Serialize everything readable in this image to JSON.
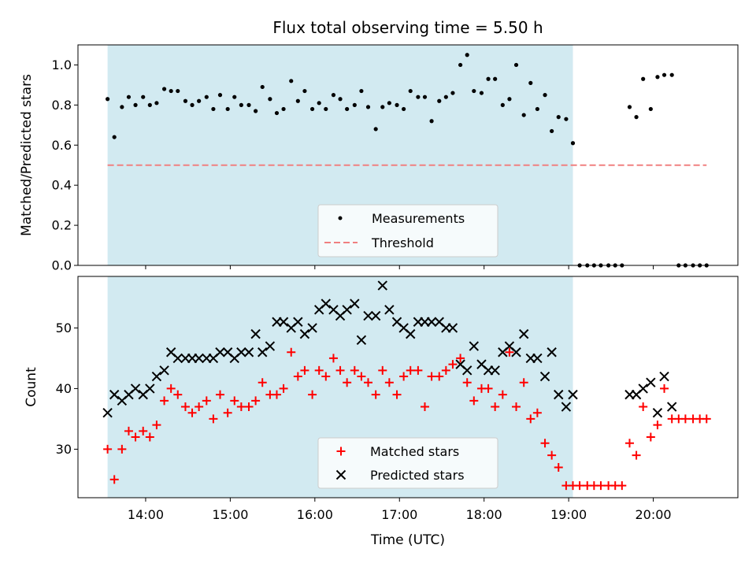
{
  "chart_data": [
    {
      "type": "scatter",
      "title": "Flux total observing time = 5.50 h",
      "xlabel": "",
      "ylabel": "Matched/Predicted stars",
      "xlim": [
        13.2,
        21.0
      ],
      "ylim": [
        0.0,
        1.1
      ],
      "yticks": [
        0.0,
        0.2,
        0.4,
        0.6,
        0.8,
        1.0
      ],
      "ytick_labels": [
        "0.0",
        "0.2",
        "0.4",
        "0.6",
        "0.8",
        "1.0"
      ],
      "xticks": [
        14,
        15,
        16,
        17,
        18,
        19,
        20
      ],
      "shaded_span": [
        13.55,
        19.05
      ],
      "shade_color": "#add8e6",
      "legend": {
        "placement": "lower center",
        "entries": [
          "Measurements",
          "Threshold"
        ]
      },
      "series": [
        {
          "name": "Measurements",
          "marker": "dot",
          "color": "#000000",
          "x": [
            13.55,
            13.63,
            13.72,
            13.8,
            13.88,
            13.97,
            14.05,
            14.13,
            14.22,
            14.3,
            14.38,
            14.47,
            14.55,
            14.63,
            14.72,
            14.8,
            14.88,
            14.97,
            15.05,
            15.13,
            15.22,
            15.3,
            15.38,
            15.47,
            15.55,
            15.63,
            15.72,
            15.8,
            15.88,
            15.97,
            16.05,
            16.13,
            16.22,
            16.3,
            16.38,
            16.47,
            16.55,
            16.63,
            16.72,
            16.8,
            16.88,
            16.97,
            17.05,
            17.13,
            17.22,
            17.3,
            17.38,
            17.47,
            17.55,
            17.63,
            17.72,
            17.8,
            17.88,
            17.97,
            18.05,
            18.13,
            18.22,
            18.3,
            18.38,
            18.47,
            18.55,
            18.63,
            18.72,
            18.8,
            18.88,
            18.97,
            19.05,
            19.13,
            19.22,
            19.3,
            19.38,
            19.47,
            19.55,
            19.63,
            19.72,
            19.8,
            19.88,
            19.97,
            20.05,
            20.13,
            20.22,
            20.3,
            20.38,
            20.47,
            20.55,
            20.63
          ],
          "y": [
            0.83,
            0.64,
            0.79,
            0.84,
            0.8,
            0.84,
            0.8,
            0.81,
            0.88,
            0.87,
            0.87,
            0.82,
            0.8,
            0.82,
            0.84,
            0.78,
            0.85,
            0.78,
            0.84,
            0.8,
            0.8,
            0.77,
            0.89,
            0.83,
            0.76,
            0.78,
            0.92,
            0.82,
            0.87,
            0.78,
            0.81,
            0.78,
            0.85,
            0.83,
            0.78,
            0.8,
            0.87,
            0.79,
            0.68,
            0.79,
            0.81,
            0.8,
            0.78,
            0.87,
            0.84,
            0.84,
            0.72,
            0.82,
            0.84,
            0.86,
            1.0,
            1.05,
            0.87,
            0.86,
            0.93,
            0.93,
            0.8,
            0.83,
            1.0,
            0.75,
            0.91,
            0.78,
            0.85,
            0.67,
            0.74,
            0.73,
            0.61,
            0.0,
            0.0,
            0.0,
            0.0,
            0.0,
            0.0,
            0.0,
            0.79,
            0.74,
            0.93,
            0.78,
            0.94,
            0.95,
            0.95,
            0.0,
            0.0,
            0.0,
            0.0,
            0.0
          ]
        },
        {
          "name": "Threshold",
          "style": "dashed",
          "color": "#f08080",
          "x": [
            13.55,
            20.63
          ],
          "y": [
            0.5,
            0.5
          ]
        }
      ]
    },
    {
      "type": "scatter",
      "title": "",
      "xlabel": "Time (UTC)",
      "ylabel": "Count",
      "xlim": [
        13.2,
        21.0
      ],
      "ylim": [
        22.0,
        58.5
      ],
      "yticks": [
        30,
        40,
        50
      ],
      "ytick_labels": [
        "30",
        "40",
        "50"
      ],
      "xticks": [
        14,
        15,
        16,
        17,
        18,
        19,
        20
      ],
      "xtick_labels": [
        "14:00",
        "15:00",
        "16:00",
        "17:00",
        "18:00",
        "19:00",
        "20:00"
      ],
      "shaded_span": [
        13.55,
        19.05
      ],
      "shade_color": "#add8e6",
      "legend": {
        "placement": "lower center",
        "entries": [
          "Matched stars",
          "Predicted stars"
        ]
      },
      "series": [
        {
          "name": "Matched stars",
          "marker": "plus",
          "color": "#ff0000",
          "x": [
            13.55,
            13.63,
            13.72,
            13.8,
            13.88,
            13.97,
            14.05,
            14.13,
            14.22,
            14.3,
            14.38,
            14.47,
            14.55,
            14.63,
            14.72,
            14.8,
            14.88,
            14.97,
            15.05,
            15.13,
            15.22,
            15.3,
            15.38,
            15.47,
            15.55,
            15.63,
            15.72,
            15.8,
            15.88,
            15.97,
            16.05,
            16.13,
            16.22,
            16.3,
            16.38,
            16.47,
            16.55,
            16.63,
            16.72,
            16.8,
            16.88,
            16.97,
            17.05,
            17.13,
            17.22,
            17.3,
            17.38,
            17.47,
            17.55,
            17.63,
            17.72,
            17.8,
            17.88,
            17.97,
            18.05,
            18.13,
            18.22,
            18.3,
            18.38,
            18.47,
            18.55,
            18.63,
            18.72,
            18.8,
            18.88,
            18.97,
            19.05,
            19.13,
            19.22,
            19.3,
            19.38,
            19.47,
            19.55,
            19.63,
            19.72,
            19.8,
            19.88,
            19.97,
            20.05,
            20.13,
            20.22,
            20.3,
            20.38,
            20.47,
            20.55,
            20.63
          ],
          "y": [
            30,
            25,
            30,
            33,
            32,
            33,
            32,
            34,
            38,
            40,
            39,
            37,
            36,
            37,
            38,
            35,
            39,
            36,
            38,
            37,
            37,
            38,
            41,
            39,
            39,
            40,
            46,
            42,
            43,
            39,
            43,
            42,
            45,
            43,
            41,
            43,
            42,
            41,
            39,
            43,
            41,
            39,
            42,
            43,
            43,
            37,
            42,
            42,
            43,
            44,
            45,
            41,
            38,
            40,
            40,
            37,
            39,
            46,
            37,
            41,
            35,
            36,
            31,
            29,
            27,
            24,
            24,
            24,
            24,
            24,
            24,
            24,
            24,
            24,
            31,
            29,
            37,
            32,
            34,
            40,
            35,
            35,
            35,
            35,
            35,
            35
          ]
        },
        {
          "name": "Predicted stars",
          "marker": "x",
          "color": "#000000",
          "x": [
            13.55,
            13.63,
            13.72,
            13.8,
            13.88,
            13.97,
            14.05,
            14.13,
            14.22,
            14.3,
            14.38,
            14.47,
            14.55,
            14.63,
            14.72,
            14.8,
            14.88,
            14.97,
            15.05,
            15.13,
            15.22,
            15.3,
            15.38,
            15.47,
            15.55,
            15.63,
            15.72,
            15.8,
            15.88,
            15.97,
            16.05,
            16.13,
            16.22,
            16.3,
            16.38,
            16.47,
            16.55,
            16.63,
            16.72,
            16.8,
            16.88,
            16.97,
            17.05,
            17.13,
            17.22,
            17.3,
            17.38,
            17.47,
            17.55,
            17.63,
            17.72,
            17.8,
            17.88,
            17.97,
            18.05,
            18.13,
            18.22,
            18.3,
            18.38,
            18.47,
            18.55,
            18.63,
            18.72,
            18.8,
            18.88,
            18.97,
            19.05,
            19.72,
            19.8,
            19.88,
            19.97,
            20.05,
            20.13,
            20.22
          ],
          "y": [
            36,
            39,
            38,
            39,
            40,
            39,
            40,
            42,
            43,
            46,
            45,
            45,
            45,
            45,
            45,
            45,
            46,
            46,
            45,
            46,
            46,
            49,
            46,
            47,
            51,
            51,
            50,
            51,
            49,
            50,
            53,
            54,
            53,
            52,
            53,
            54,
            48,
            52,
            52,
            57,
            53,
            51,
            50,
            49,
            51,
            51,
            51,
            51,
            50,
            50,
            44,
            43,
            47,
            44,
            43,
            43,
            46,
            47,
            46,
            49,
            45,
            45,
            42,
            46,
            39,
            37,
            39,
            39,
            39,
            40,
            41,
            36,
            42,
            37
          ]
        }
      ]
    }
  ]
}
